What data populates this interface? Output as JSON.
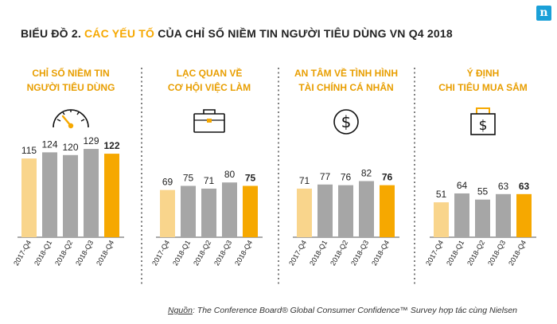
{
  "logo": {
    "letter": "n",
    "color": "#1aa0d8"
  },
  "title": {
    "prefix": "BIỂU ĐỒ 2.",
    "highlight": "CÁC YẾU TỐ",
    "suffix": "CỦA CHỈ SỐ NIỀM TIN NGƯỜI TIÊU DÙNG VN Q4 2018"
  },
  "source": {
    "label": "Nguồn",
    "text": ": The Conference Board® Global Consumer Confidence™ Survey hợp tác cùng Nielsen"
  },
  "colors": {
    "highlight_bar": "#f9d58c",
    "neutral_bar": "#a6a6a6",
    "accent_bar": "#f6a800",
    "panel_title": "#e89e00"
  },
  "chart_data": [
    {
      "type": "bar",
      "title": [
        "CHỈ SỐ NIỀM TIN",
        "NGƯỜI TIÊU DÙNG"
      ],
      "icon": "gauge-icon",
      "categories": [
        "2017-Q4",
        "2018-Q1",
        "2018-Q2",
        "2018-Q3",
        "2018-Q4"
      ],
      "values": [
        115,
        124,
        120,
        129,
        122
      ],
      "ylim": [
        0,
        140
      ]
    },
    {
      "type": "bar",
      "title": [
        "LẠC QUAN VỀ",
        "CƠ HỘI VIỆC LÀM"
      ],
      "icon": "briefcase-icon",
      "categories": [
        "2017-Q4",
        "2018-Q1",
        "2018-Q2",
        "2018-Q3",
        "2018-Q4"
      ],
      "values": [
        69,
        75,
        71,
        80,
        75
      ],
      "ylim": [
        0,
        140
      ]
    },
    {
      "type": "bar",
      "title": [
        "AN TÂM VỀ TÌNH HÌNH",
        "TÀI CHÍNH CÁ NHÂN"
      ],
      "icon": "dollar-coin-icon",
      "categories": [
        "2017-Q4",
        "2018-Q1",
        "2018-Q2",
        "2018-Q3",
        "2018-Q4"
      ],
      "values": [
        71,
        77,
        76,
        82,
        76
      ],
      "ylim": [
        0,
        140
      ]
    },
    {
      "type": "bar",
      "title": [
        "Ý ĐỊNH",
        "CHI TIÊU MUA SẮM"
      ],
      "icon": "shopping-bag-icon",
      "categories": [
        "2017-Q4",
        "2018-Q1",
        "2018-Q2",
        "2018-Q3",
        "2018-Q4"
      ],
      "values": [
        51,
        64,
        55,
        63,
        63
      ],
      "ylim": [
        0,
        140
      ]
    }
  ]
}
